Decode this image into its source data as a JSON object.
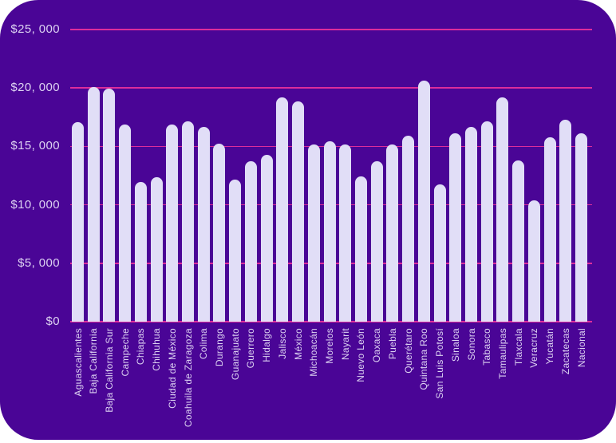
{
  "colors": {
    "page_background": "#ffffff",
    "card_background": "#4A0596",
    "bar_fill": "#E1DEF7",
    "gridline": "#DE2D9B",
    "tick_label": "#DDD2F2",
    "category_label": "#DDD2F2"
  },
  "chart_data": {
    "type": "bar",
    "title": "",
    "xlabel": "",
    "ylabel": "",
    "legend": "none",
    "grid": "horizontal",
    "ylim": [
      0,
      25000
    ],
    "y_ticks": [
      {
        "value": 0,
        "label": "$0"
      },
      {
        "value": 5000,
        "label": "$5, 000"
      },
      {
        "value": 10000,
        "label": "$10, 000"
      },
      {
        "value": 15000,
        "label": "$15, 000"
      },
      {
        "value": 20000,
        "label": "$20, 000"
      },
      {
        "value": 25000,
        "label": "$25, 000"
      }
    ],
    "categories": [
      "Aguascalientes",
      "Baja California",
      "Baja California Sur",
      "Campeche",
      "Chiapas",
      "Chihuhua",
      "Ciudad de México",
      "Coahuila de Zaragoza",
      "Colima",
      "Durango",
      "Guanajuato",
      "Guerrero",
      "Hidalgo",
      "Jalisco",
      "México",
      "Michoacán",
      "Morelos",
      "Nayarit",
      "Nuevo León",
      "Oaxaca",
      "Puebla",
      "Querétaro",
      "Quintana Roo",
      "San Luis Potosí",
      "Sinaloa",
      "Sonora",
      "Tabasco",
      "Tamaulipas",
      "Tlaxcala",
      "Veracruz",
      "Yucatán",
      "Zacatecas",
      "Nacional"
    ],
    "values": [
      17100,
      20050,
      19950,
      16850,
      11950,
      12350,
      16850,
      17150,
      16650,
      15200,
      12150,
      13750,
      14300,
      19200,
      18850,
      15150,
      15450,
      15150,
      12400,
      13700,
      15150,
      15900,
      20650,
      11750,
      16100,
      16700,
      17150,
      19200,
      13800,
      10400,
      15800,
      17250,
      16150
    ]
  }
}
